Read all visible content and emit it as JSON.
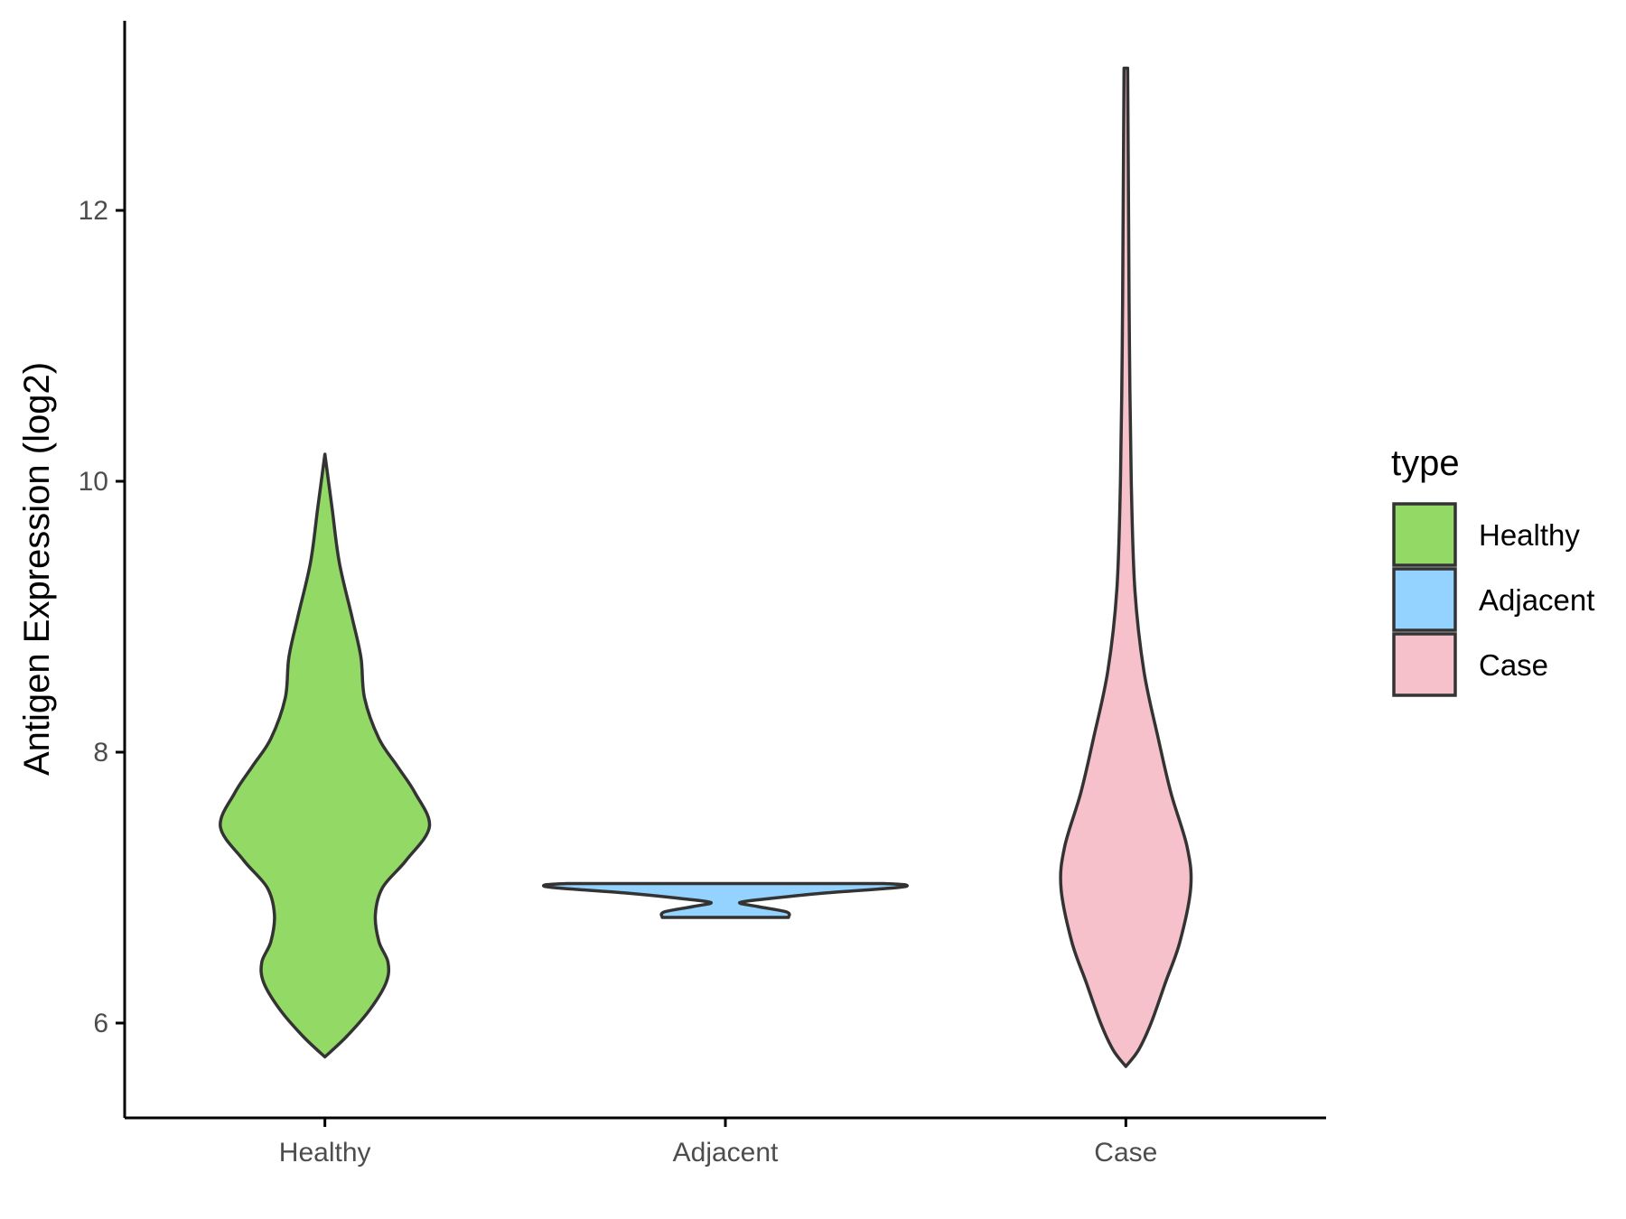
{
  "chart_data": {
    "type": "violin",
    "ylabel": "Antigen Expression (log2)",
    "xlabel": "",
    "categories": [
      "Healthy",
      "Adjacent",
      "Case"
    ],
    "ylim": [
      5.3,
      13.4
    ],
    "yticks": [
      6,
      8,
      10,
      12
    ],
    "ytick_labels": [
      "6",
      "8",
      "10",
      "12"
    ],
    "legend": {
      "title": "type",
      "placement": "right",
      "entries": [
        "Healthy",
        "Adjacent",
        "Case"
      ]
    },
    "series": [
      {
        "name": "Healthy",
        "color": "#93d966",
        "min": 5.75,
        "max": 10.2,
        "profile": [
          [
            5.75,
            0.0
          ],
          [
            5.9,
            0.12
          ],
          [
            6.1,
            0.25
          ],
          [
            6.3,
            0.34
          ],
          [
            6.45,
            0.35
          ],
          [
            6.6,
            0.3
          ],
          [
            6.8,
            0.28
          ],
          [
            7.0,
            0.32
          ],
          [
            7.2,
            0.45
          ],
          [
            7.45,
            0.58
          ],
          [
            7.7,
            0.5
          ],
          [
            7.9,
            0.4
          ],
          [
            8.1,
            0.3
          ],
          [
            8.4,
            0.22
          ],
          [
            8.7,
            0.2
          ],
          [
            9.0,
            0.15
          ],
          [
            9.4,
            0.08
          ],
          [
            9.8,
            0.04
          ],
          [
            10.2,
            0.0
          ]
        ]
      },
      {
        "name": "Adjacent",
        "color": "#94d3ff",
        "min": 6.78,
        "max": 7.03,
        "profile": [
          [
            6.78,
            0.35
          ],
          [
            6.82,
            0.34
          ],
          [
            6.86,
            0.18
          ],
          [
            6.89,
            0.08
          ],
          [
            6.92,
            0.25
          ],
          [
            6.96,
            0.55
          ],
          [
            7.0,
            0.95
          ],
          [
            7.02,
            1.0
          ],
          [
            7.03,
            0.88
          ]
        ]
      },
      {
        "name": "Case",
        "color": "#f7c1cb",
        "min": 5.68,
        "max": 13.05,
        "profile": [
          [
            5.68,
            0.0
          ],
          [
            5.8,
            0.07
          ],
          [
            6.0,
            0.14
          ],
          [
            6.3,
            0.22
          ],
          [
            6.6,
            0.3
          ],
          [
            7.0,
            0.36
          ],
          [
            7.3,
            0.34
          ],
          [
            7.7,
            0.25
          ],
          [
            8.1,
            0.18
          ],
          [
            8.6,
            0.1
          ],
          [
            9.2,
            0.05
          ],
          [
            10.0,
            0.03
          ],
          [
            11.0,
            0.02
          ],
          [
            12.0,
            0.015
          ],
          [
            13.05,
            0.01
          ]
        ]
      }
    ]
  }
}
